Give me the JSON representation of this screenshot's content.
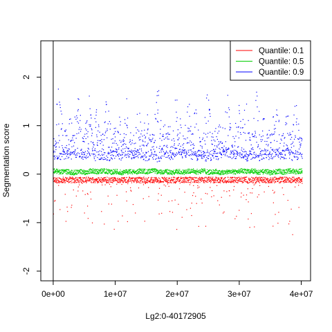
{
  "chart_data": {
    "type": "scatter",
    "xlabel": "Lg2:0-40172905",
    "ylabel": "Segmentation score",
    "xlim": [
      -2000000,
      41500000
    ],
    "ylim": [
      -2.2,
      2.75
    ],
    "x_ticks": [
      0,
      10000000,
      20000000,
      30000000,
      40000000
    ],
    "x_tick_labels": [
      "0e+00",
      "1e+07",
      "2e+07",
      "3e+07",
      "4e+07"
    ],
    "y_ticks": [
      -2,
      -1,
      0,
      1,
      2
    ],
    "y_tick_labels": [
      "-2",
      "-1",
      "0",
      "1",
      "2"
    ],
    "vline_x": 0,
    "x_range": [
      0,
      40172905
    ],
    "legend": {
      "position": "top-right",
      "entries": [
        {
          "label": "Quantile: 0.1",
          "color": "#ff0000"
        },
        {
          "label": "Quantile: 0.5",
          "color": "#00cd00"
        },
        {
          "label": "Quantile: 0.9",
          "color": "#0000ff"
        }
      ]
    },
    "series": [
      {
        "name": "Quantile: 0.1",
        "color": "#ff0000",
        "baseline": -0.12,
        "spread_range": [
          -1.7,
          0.0
        ],
        "typical_range": [
          -0.35,
          -0.02
        ]
      },
      {
        "name": "Quantile: 0.5",
        "color": "#00cd00",
        "baseline": 0.05,
        "spread_range": [
          -0.05,
          0.15
        ],
        "typical_range": [
          0.0,
          0.12
        ]
      },
      {
        "name": "Quantile: 0.9",
        "color": "#0000ff",
        "baseline": 0.4,
        "spread_range": [
          0.15,
          2.25
        ],
        "typical_range": [
          0.25,
          1.2
        ]
      }
    ]
  }
}
